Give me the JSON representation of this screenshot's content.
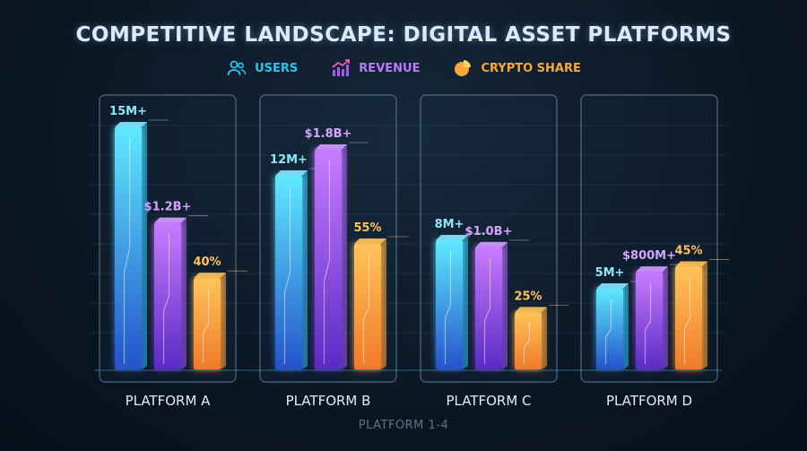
{
  "chart_data": {
    "type": "bar",
    "title": "COMPETITIVE LANDSCAPE: DIGITAL ASSET PLATFORMS",
    "categories": [
      "PLATFORM A",
      "PLATFORM B",
      "PLATFORM C",
      "PLATFORM D"
    ],
    "xlabel": "PLATFORM 1-4",
    "ylabel": "",
    "grid": true,
    "legend_position": "top-center",
    "series": [
      {
        "name": "USERS",
        "color": "#29c6ee",
        "values": [
          15,
          12,
          8,
          5
        ],
        "labels": [
          "15M+",
          "12M+",
          "8M+",
          "5M+"
        ],
        "icon": "users-icon"
      },
      {
        "name": "REVENUE",
        "color": "#a35cf0",
        "values": [
          1.2,
          1.8,
          1.0,
          0.8
        ],
        "labels": [
          "$1.2B+",
          "$1.8B+",
          "$1.0B+",
          "$800M+"
        ],
        "icon": "revenue-chart-icon"
      },
      {
        "name": "CRYPTO SHARE",
        "color": "#f6a83a",
        "values": [
          40,
          55,
          25,
          45
        ],
        "labels": [
          "40%",
          "55%",
          "25%",
          "45%"
        ],
        "icon": "pie-chart-icon"
      }
    ]
  }
}
